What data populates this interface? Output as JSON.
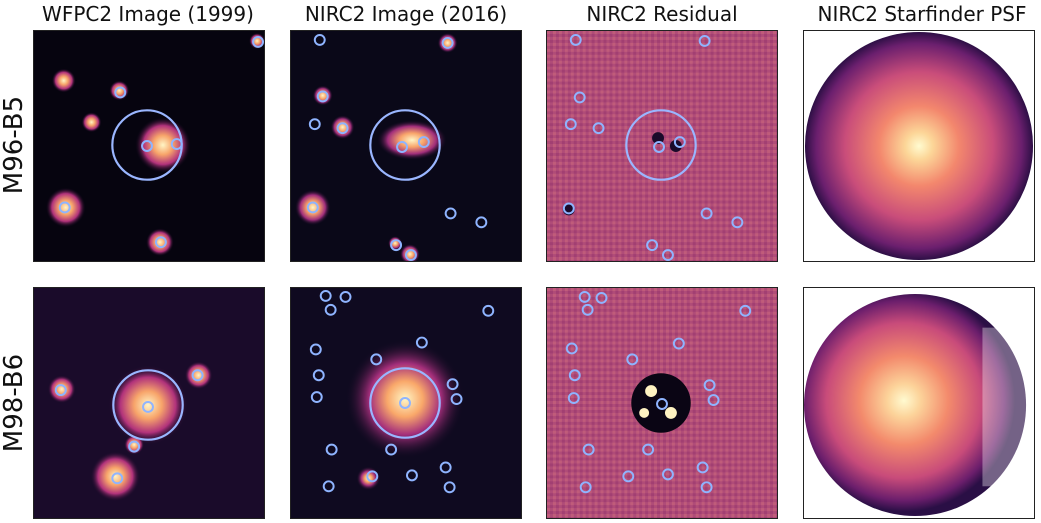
{
  "columns": {
    "c1": "WFPC2 Image (1999)",
    "c2": "NIRC2 Image (2016)",
    "c3": "NIRC2 Residual",
    "c4": "NIRC2 Starfinder PSF"
  },
  "rows": {
    "r1": "M96-B5",
    "r2": "M98-B6"
  },
  "colors": {
    "dark_bg": "#050312",
    "residual_bg": "#b24e79",
    "marker": "#8fb4ff",
    "hot": "#fff6c0"
  }
}
